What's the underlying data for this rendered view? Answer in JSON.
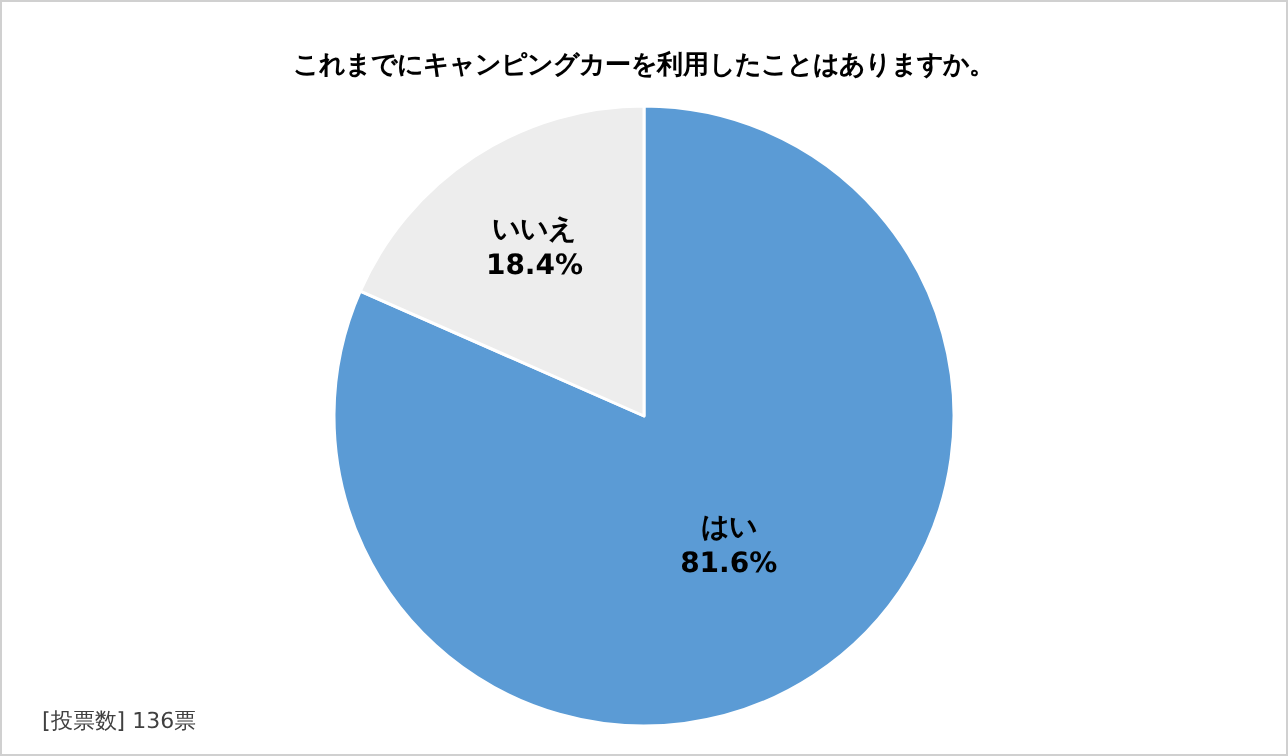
{
  "chart_data": {
    "type": "pie",
    "title": "これまでにキャンピングカーを利用したことはありますか。",
    "categories": [
      "はい",
      "いいえ"
    ],
    "values": [
      81.6,
      18.4
    ],
    "colors": [
      "#5b9bd5",
      "#ededed"
    ],
    "value_labels": [
      "81.6%",
      "18.4%"
    ],
    "legend": false,
    "annotations": [
      "[投票数] 136票"
    ]
  }
}
